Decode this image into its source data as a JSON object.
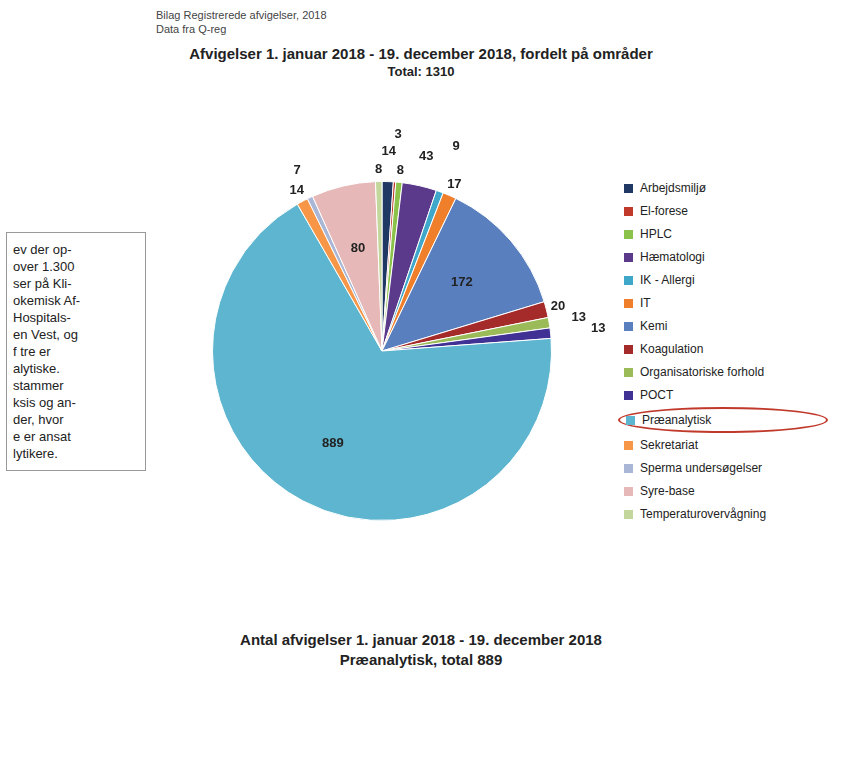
{
  "header": [
    "Bilag Registrerede afvigelser, 2018",
    "Data fra Q-reg"
  ],
  "chart_data": {
    "type": "pie",
    "title": "Afvigelser 1. januar 2018 - 19. december 2018, fordelt på områder",
    "subtitle": "Total: 1310",
    "categories": [
      "Arbejdsmiljø",
      "El-forese",
      "HPLC",
      "Hæmatologi",
      "IK - Allergi",
      "IT",
      "Kemi",
      "Koagulation",
      "Organisatoriske forhold",
      "POCT",
      "Præanalytisk",
      "Sekretariat",
      "Sperma undersøgelser",
      "Syre-base",
      "Temperaturovervågning"
    ],
    "values": [
      14,
      3,
      8,
      43,
      9,
      17,
      172,
      20,
      13,
      13,
      889,
      14,
      7,
      80,
      8
    ],
    "colors": [
      "#1f3864",
      "#c0392b",
      "#8bc34a",
      "#5b3a8c",
      "#3fa7c9",
      "#f07f2c",
      "#5a7fbf",
      "#a52a2a",
      "#9bbb59",
      "#403294",
      "#5eb5cf",
      "#f79646",
      "#a9b6d6",
      "#e6b9b8",
      "#c3d69b"
    ],
    "legend": "right",
    "data_labels": true
  },
  "marked": "Præanalytisk",
  "footer": [
    "Antal afvigelser 1. januar 2018 - 19. december 2018",
    "Præanalytisk, total 889"
  ],
  "side_text": [
    "ev der op-",
    "over 1.300",
    "ser på Kli-",
    "okemisk Af-",
    "Hospitals-",
    "en Vest, og",
    "f tre er",
    "alytiske.",
    "stammer",
    "ksis og an-",
    "der, hvor",
    "e er ansat",
    "lytikere."
  ]
}
